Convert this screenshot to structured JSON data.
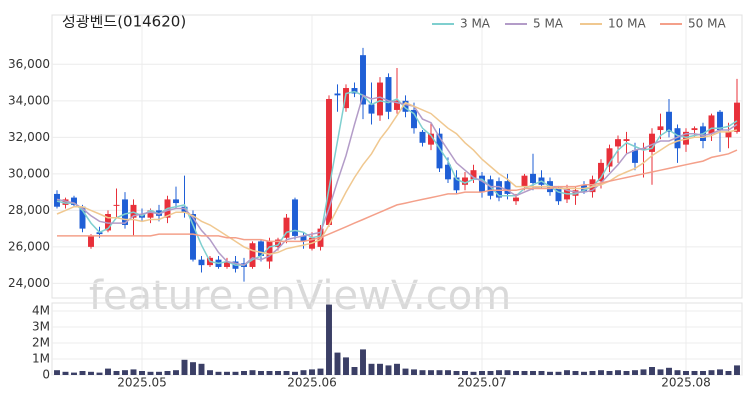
{
  "chart_data": {
    "type": "candlestick",
    "title": "성광벤드(014620)",
    "watermark": "feature.enViewV.com",
    "categories": [
      null,
      null,
      null,
      null,
      null,
      null,
      null,
      null,
      null,
      null,
      "2025.05",
      null,
      null,
      null,
      null,
      null,
      null,
      null,
      null,
      null,
      null,
      null,
      null,
      null,
      null,
      null,
      null,
      null,
      null,
      null,
      "2025.06",
      null,
      null,
      null,
      null,
      null,
      null,
      null,
      null,
      null,
      null,
      null,
      null,
      null,
      null,
      null,
      null,
      null,
      null,
      null,
      "2025.07",
      null,
      null,
      null,
      null,
      null,
      null,
      null,
      null,
      null,
      null,
      null,
      null,
      null,
      null,
      null,
      null,
      null,
      null,
      null,
      null,
      null,
      null,
      null,
      "2025.08",
      null,
      null,
      null,
      null,
      null,
      null
    ],
    "open": [
      28900,
      28300,
      28700,
      28200,
      26000,
      26800,
      26900,
      28300,
      28600,
      27600,
      27800,
      27600,
      28000,
      27600,
      28600,
      28200,
      27800,
      25300,
      25000,
      25300,
      24900,
      25200,
      25100,
      24900,
      26300,
      25200,
      26000,
      26500,
      28600,
      26600,
      25900,
      26000,
      27200,
      34400,
      33600,
      34700,
      36500,
      33800,
      33200,
      35300,
      33500,
      34000,
      33500,
      32300,
      31600,
      32200,
      30500,
      29800,
      29400,
      29700,
      29900,
      29700,
      29600,
      29600,
      28500,
      29300,
      30000,
      29800,
      29600,
      29200,
      28600,
      28800,
      29400,
      29000,
      29600,
      30400,
      31500,
      31800,
      31300,
      31300,
      31200,
      32400,
      33400,
      32500,
      31600,
      32400,
      32600,
      32200,
      33400,
      32000,
      32300
    ],
    "high": [
      29100,
      28700,
      28800,
      28300,
      26700,
      27100,
      28000,
      29200,
      29000,
      28600,
      28100,
      28100,
      28300,
      28800,
      29300,
      29900,
      28000,
      25500,
      25500,
      25500,
      25400,
      25500,
      25400,
      26300,
      26400,
      26500,
      26500,
      27800,
      28700,
      26800,
      26800,
      27200,
      34300,
      34900,
      34900,
      35000,
      36900,
      35000,
      35300,
      35500,
      35800,
      34300,
      33900,
      32400,
      32800,
      32500,
      30900,
      30200,
      30100,
      30500,
      30100,
      29900,
      29800,
      30000,
      28900,
      30000,
      31100,
      30200,
      29800,
      29300,
      29400,
      29300,
      29600,
      29900,
      30800,
      31600,
      32100,
      32300,
      31700,
      31700,
      32500,
      33300,
      34100,
      32700,
      32500,
      32600,
      32800,
      33300,
      33500,
      32800,
      35200
    ],
    "low": [
      28100,
      28100,
      28200,
      26800,
      25900,
      26500,
      26800,
      27600,
      27000,
      26600,
      27400,
      27300,
      27400,
      27300,
      28100,
      27600,
      25200,
      24600,
      24900,
      24800,
      24800,
      24600,
      24100,
      24800,
      25200,
      24800,
      25800,
      26200,
      26400,
      25900,
      25800,
      25800,
      27100,
      33400,
      33400,
      34200,
      33000,
      32700,
      32900,
      33000,
      33300,
      33100,
      32200,
      31500,
      31300,
      30100,
      29500,
      28900,
      29100,
      29500,
      28700,
      28600,
      28500,
      28600,
      28300,
      29100,
      29100,
      29200,
      28800,
      28300,
      28400,
      28300,
      28900,
      28700,
      29200,
      30100,
      30600,
      31100,
      30200,
      29800,
      29400,
      31900,
      32000,
      30600,
      31200,
      32000,
      31400,
      31800,
      31200,
      31400,
      32200
    ],
    "close": [
      28200,
      28600,
      28300,
      27000,
      26600,
      26700,
      27800,
      28300,
      27200,
      28300,
      27600,
      28000,
      27700,
      28600,
      28400,
      27900,
      25300,
      25000,
      25400,
      24900,
      25200,
      24800,
      24900,
      26200,
      25500,
      26300,
      26400,
      27600,
      26600,
      26300,
      26500,
      27000,
      34100,
      34300,
      34700,
      34400,
      33800,
      33300,
      35000,
      33400,
      34000,
      33400,
      32500,
      31700,
      32200,
      30300,
      29700,
      29100,
      29800,
      30200,
      29000,
      28800,
      28700,
      28900,
      28700,
      29900,
      29500,
      29400,
      29000,
      28500,
      29200,
      29100,
      29000,
      29700,
      30600,
      31400,
      31900,
      31900,
      30600,
      31400,
      32200,
      32600,
      32300,
      31400,
      32300,
      32500,
      31800,
      33200,
      32400,
      32300,
      33900
    ],
    "up_color": "#e8303a",
    "down_color": "#1f5fd6",
    "ylim": [
      23200,
      38700
    ],
    "yticks": [
      {
        "value": 24000,
        "label": "24,000"
      },
      {
        "value": 26000,
        "label": "26,000"
      },
      {
        "value": 28000,
        "label": "28,000"
      },
      {
        "value": 30000,
        "label": "30,000"
      },
      {
        "value": 32000,
        "label": "32,000"
      },
      {
        "value": 34000,
        "label": "34,000"
      },
      {
        "value": 36000,
        "label": "36,000"
      }
    ],
    "grid": true,
    "legend": "top-right",
    "series": [
      {
        "name": "3 MA",
        "color": "#7fcfcf",
        "values": [
          28500,
          28400,
          28400,
          28000,
          27300,
          26800,
          27000,
          27600,
          27800,
          27900,
          27700,
          28000,
          27800,
          28100,
          28200,
          28300,
          27200,
          26100,
          25200,
          25100,
          25200,
          25000,
          25000,
          25300,
          25500,
          26000,
          26100,
          26800,
          26900,
          26800,
          26500,
          26600,
          29200,
          31800,
          34400,
          34500,
          34300,
          33800,
          34000,
          33900,
          34100,
          33600,
          33300,
          32500,
          32100,
          31400,
          30700,
          29700,
          29500,
          29700,
          29700,
          29300,
          28800,
          28800,
          28800,
          29200,
          29400,
          29600,
          29300,
          29000,
          28900,
          28900,
          29100,
          29300,
          29800,
          30600,
          31300,
          31700,
          31500,
          31300,
          31400,
          32100,
          32400,
          32100,
          32000,
          32100,
          32200,
          32500,
          32500,
          32600,
          32900
        ]
      },
      {
        "name": "5 MA",
        "color": "#b39cc8",
        "values": [
          28600,
          28500,
          28400,
          28100,
          27700,
          27400,
          27300,
          27300,
          27300,
          27700,
          27800,
          27900,
          27800,
          28000,
          28100,
          28100,
          27600,
          26900,
          26400,
          25700,
          25200,
          25100,
          25000,
          25400,
          25300,
          25500,
          25900,
          26400,
          26500,
          26600,
          26700,
          26800,
          28100,
          29600,
          31000,
          32700,
          34300,
          34100,
          34200,
          34000,
          33900,
          33800,
          33700,
          33000,
          32800,
          32000,
          31300,
          30600,
          30200,
          29800,
          29600,
          29300,
          29300,
          29100,
          28800,
          29000,
          29200,
          29300,
          29300,
          29300,
          29100,
          29000,
          29000,
          29100,
          29500,
          30000,
          30500,
          31100,
          31300,
          31400,
          31600,
          31800,
          31800,
          32000,
          32200,
          32200,
          32100,
          32200,
          32400,
          32400,
          32700
        ]
      },
      {
        "name": "10 MA",
        "color": "#f0c890",
        "values": [
          27800,
          28000,
          28200,
          28200,
          28000,
          27800,
          27600,
          27600,
          27500,
          27500,
          27400,
          27500,
          27500,
          27700,
          27900,
          27900,
          27700,
          27400,
          27200,
          26900,
          26600,
          26300,
          26000,
          25800,
          25700,
          25600,
          25700,
          25900,
          26000,
          26100,
          26200,
          26400,
          27200,
          28100,
          29000,
          29800,
          30500,
          31100,
          31900,
          32500,
          33200,
          33900,
          33700,
          33500,
          33300,
          32900,
          32500,
          32200,
          31700,
          31300,
          30800,
          30400,
          30000,
          29700,
          29300,
          29300,
          29300,
          29300,
          29300,
          29200,
          29200,
          29200,
          29200,
          29300,
          29400,
          29600,
          29900,
          30100,
          30300,
          30600,
          31000,
          31300,
          31600,
          31800,
          31900,
          32000,
          32000,
          32100,
          32300,
          32300,
          32400
        ]
      },
      {
        "name": "50 MA",
        "color": "#f4a08a",
        "values": [
          26600,
          26600,
          26600,
          26600,
          26600,
          26600,
          26600,
          26600,
          26600,
          26600,
          26600,
          26600,
          26700,
          26700,
          26700,
          26700,
          26700,
          26600,
          26600,
          26600,
          26500,
          26500,
          26400,
          26400,
          26400,
          26300,
          26300,
          26300,
          26300,
          26300,
          26400,
          26500,
          26700,
          26900,
          27100,
          27300,
          27500,
          27700,
          27900,
          28100,
          28300,
          28400,
          28500,
          28600,
          28700,
          28800,
          28900,
          28900,
          29000,
          29000,
          29000,
          29100,
          29100,
          29100,
          29100,
          29200,
          29200,
          29200,
          29200,
          29300,
          29300,
          29300,
          29400,
          29400,
          29500,
          29600,
          29700,
          29800,
          29900,
          30000,
          30100,
          30200,
          30300,
          30400,
          30500,
          30600,
          30700,
          30900,
          31000,
          31100,
          31300
        ]
      }
    ],
    "volume": {
      "color": "#3b3f66",
      "ylim": [
        0,
        4500000
      ],
      "yticks": [
        0,
        {
          "value": 1000000,
          "label": "1M"
        },
        {
          "value": 2000000,
          "label": "2M"
        },
        {
          "value": 3000000,
          "label": "3M"
        },
        {
          "value": 4000000,
          "label": "4M"
        }
      ],
      "values": [
        300000,
        200000,
        150000,
        250000,
        200000,
        150000,
        400000,
        250000,
        300000,
        350000,
        250000,
        200000,
        200000,
        250000,
        300000,
        950000,
        800000,
        700000,
        300000,
        200000,
        200000,
        200000,
        250000,
        300000,
        250000,
        250000,
        250000,
        250000,
        200000,
        300000,
        350000,
        400000,
        4400000,
        1400000,
        1100000,
        500000,
        1600000,
        700000,
        700000,
        600000,
        700000,
        400000,
        350000,
        300000,
        300000,
        300000,
        300000,
        250000,
        250000,
        200000,
        250000,
        250000,
        300000,
        300000,
        250000,
        250000,
        250000,
        250000,
        200000,
        200000,
        300000,
        250000,
        200000,
        250000,
        300000,
        250000,
        300000,
        250000,
        300000,
        350000,
        500000,
        350000,
        450000,
        300000,
        250000,
        250000,
        250000,
        300000,
        350000,
        250000,
        600000
      ]
    }
  }
}
